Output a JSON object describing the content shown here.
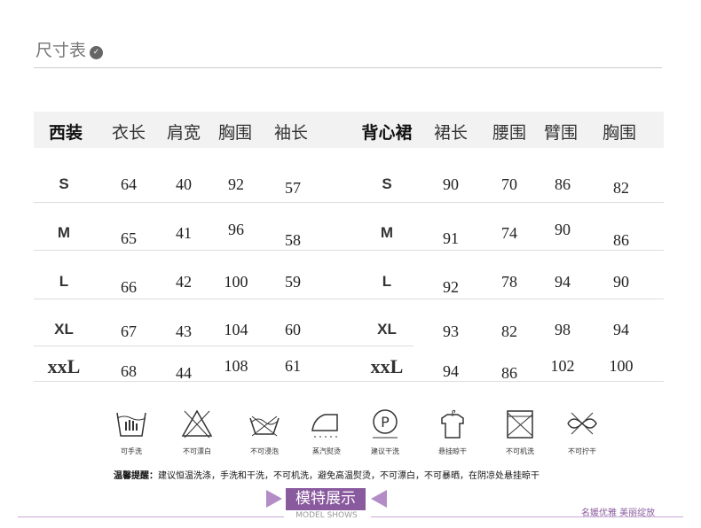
{
  "header": {
    "title": "尺寸表",
    "icon": "chevron-down-icon"
  },
  "table_left": {
    "headers": [
      "西装",
      "衣长",
      "肩宽",
      "胸围",
      "袖长"
    ],
    "rows": [
      [
        "S",
        "64",
        "40",
        "92",
        "57"
      ],
      [
        "M",
        "65",
        "41",
        "96",
        "58"
      ],
      [
        "L",
        "66",
        "42",
        "100",
        "59"
      ],
      [
        "XL",
        "67",
        "43",
        "104",
        "60"
      ],
      [
        "xxL",
        "68",
        "44",
        "108",
        "61"
      ]
    ]
  },
  "table_right": {
    "headers": [
      "背心裙",
      "裙长",
      "腰围",
      "臂围",
      "胸围"
    ],
    "rows": [
      [
        "S",
        "90",
        "70",
        "86",
        "82"
      ],
      [
        "M",
        "91",
        "74",
        "90",
        "86"
      ],
      [
        "L",
        "92",
        "78",
        "94",
        "90"
      ],
      [
        "XL",
        "93",
        "82",
        "98",
        "94"
      ],
      [
        "xxL",
        "94",
        "86",
        "102",
        "100"
      ]
    ]
  },
  "care": [
    {
      "label": "可手洗",
      "icon": "hand-wash-icon"
    },
    {
      "label": "不可漂白",
      "icon": "no-bleach-icon"
    },
    {
      "label": "不可浸泡",
      "icon": "no-soak-icon"
    },
    {
      "label": "蒸汽熨烫",
      "icon": "steam-iron-icon"
    },
    {
      "label": "建议干洗",
      "icon": "dry-clean-icon"
    },
    {
      "label": "悬挂晾干",
      "icon": "hang-dry-icon"
    },
    {
      "label": "不可机洗",
      "icon": "no-machine-wash-icon"
    },
    {
      "label": "不可拧干",
      "icon": "no-wring-icon"
    }
  ],
  "tip": {
    "label": "温馨提醒：",
    "text": "建议恒温洗涤，手洗和干洗，不可机洗，避免高温熨烫，不可漂白，不可暴晒，在阴凉处悬挂晾干"
  },
  "section": {
    "title": "模特展示",
    "subtitle": "MODEL SHOWS",
    "brand": "名媛优雅  美丽绽放",
    "accent": "#8a5a9e"
  }
}
